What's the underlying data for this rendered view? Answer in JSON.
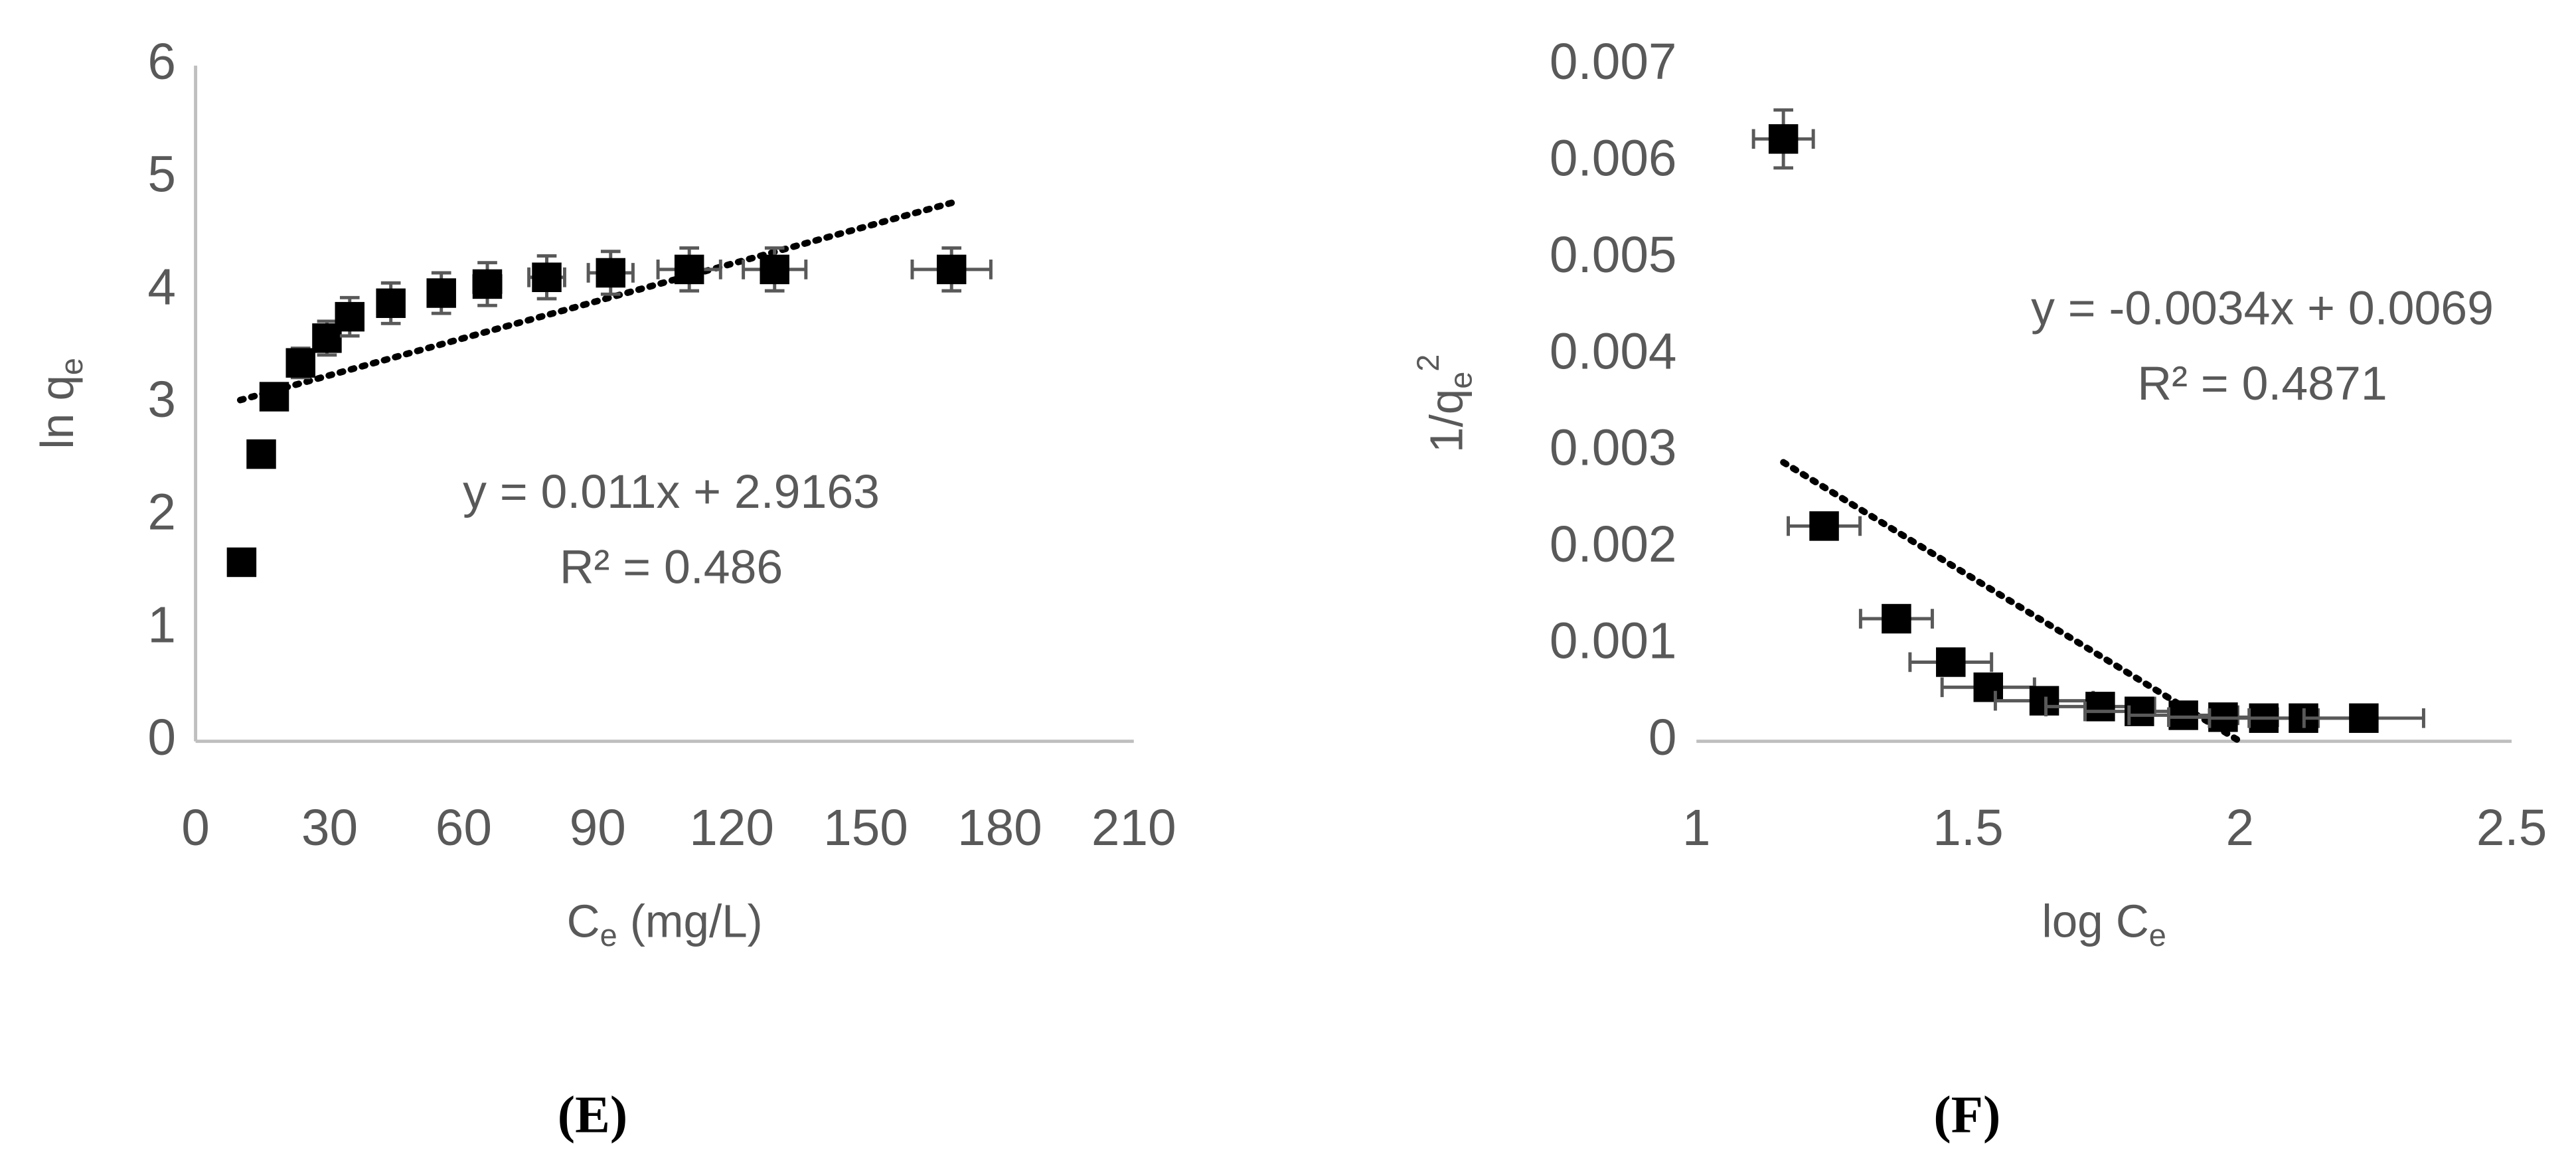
{
  "chart_data": [
    {
      "type": "scatter",
      "panel_label": "(E)",
      "color": "#000000",
      "y_axis_line": true,
      "xlabel": {
        "base": "C",
        "sub": "e",
        "rest": " (mg/L)"
      },
      "ylabel": {
        "base": "ln q",
        "sub": "e"
      },
      "xlim": [
        0,
        210
      ],
      "xticks": [
        0,
        30,
        60,
        90,
        120,
        150,
        180,
        210
      ],
      "ylim": [
        0,
        6
      ],
      "yticks": [
        0,
        1,
        2,
        3,
        4,
        5,
        6
      ],
      "x": [
        10.3,
        14.7,
        17.6,
        23.5,
        29.4,
        34.5,
        43.7,
        55,
        65.3,
        78.6,
        92.9,
        110.5,
        129.6,
        169.2
      ],
      "values": [
        1.59,
        2.55,
        3.06,
        3.36,
        3.58,
        3.77,
        3.89,
        3.98,
        4.06,
        4.12,
        4.16,
        4.19,
        4.19,
        4.19
      ],
      "xerr": [
        0.5,
        0.6,
        0.8,
        1.2,
        1.5,
        1.8,
        2.2,
        2.6,
        3,
        4,
        5,
        7,
        7,
        8.8
      ],
      "yerr": [
        0.02,
        0.05,
        0.1,
        0.13,
        0.15,
        0.17,
        0.18,
        0.18,
        0.19,
        0.19,
        0.19,
        0.19,
        0.19,
        0.19
      ],
      "trendline": {
        "x": [
          10,
          170
        ],
        "y": [
          3.03,
          4.79
        ]
      },
      "annotation": [
        "y = 0.011x + 2.9163",
        "R² = 0.486"
      ]
    },
    {
      "type": "scatter",
      "panel_label": "(F)",
      "color": "#000000",
      "y_axis_line": false,
      "xlabel": {
        "base": "log C",
        "sub": "e",
        "rest": ""
      },
      "ylabel": {
        "base": "1/q",
        "sub": "e",
        "sup": "2"
      },
      "xlim": [
        1,
        2.5
      ],
      "xticks": [
        1,
        1.5,
        2,
        2.5
      ],
      "ylim": [
        0,
        0.007
      ],
      "yticks": [
        0,
        0.001,
        0.002,
        0.003,
        0.004,
        0.005,
        0.006,
        0.007
      ],
      "x": [
        1.16,
        1.235,
        1.368,
        1.468,
        1.537,
        1.64,
        1.743,
        1.815,
        1.896,
        1.969,
        2.044,
        2.117,
        2.228
      ],
      "values": [
        0.00624,
        0.00223,
        0.00127,
        0.00082,
        0.00056,
        0.00042,
        0.00036,
        0.00031,
        0.00027,
        0.00025,
        0.00024,
        0.00024,
        0.00024
      ],
      "xerr": [
        0.055,
        0.066,
        0.066,
        0.075,
        0.085,
        0.09,
        0.1,
        0.1,
        0.1,
        0.1,
        0.1,
        0.1,
        0.11
      ],
      "yerr": [
        0.0003,
        5e-05,
        5e-05,
        5e-05,
        5e-05,
        3e-05,
        3e-05,
        3e-05,
        2e-05,
        2e-05,
        2e-05,
        2e-05,
        2e-05
      ],
      "trendline": {
        "x": [
          1.16,
          2.0
        ],
        "y": [
          0.00289,
          0.0
        ]
      },
      "annotation": [
        "y = -0.0034x + 0.0069",
        "R² = 0.4871"
      ]
    }
  ]
}
